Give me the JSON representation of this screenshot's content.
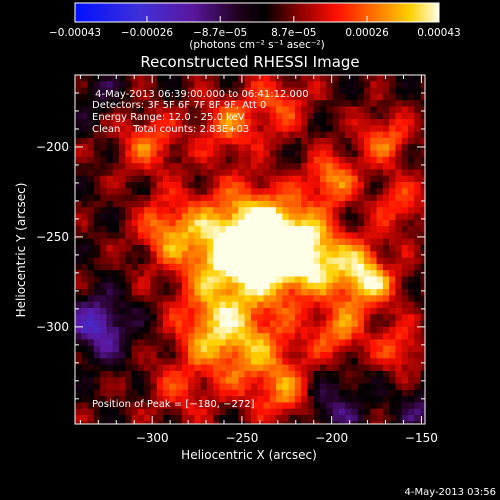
{
  "chart_data": {
    "type": "heatmap",
    "title": "Reconstructed RHESSI Image",
    "xlabel": "Heliocentric X (arcsec)",
    "ylabel": "Heliocentric Y (arcsec)",
    "xlim": [
      -343,
      -148
    ],
    "ylim": [
      -354,
      -160
    ],
    "x_ticks": [
      -300,
      -250,
      -200,
      -150
    ],
    "x_tick_labels": [
      "−300",
      "−250",
      "−200",
      "−150"
    ],
    "y_ticks": [
      -200,
      -250,
      -300
    ],
    "y_tick_labels": [
      "−200",
      "−250",
      "−300"
    ],
    "colorbar": {
      "min": -0.00043,
      "max": 0.00043,
      "ticks": [
        -0.00043,
        -0.00026,
        -8.7e-05,
        8.7e-05,
        0.00026,
        0.00043
      ],
      "tick_labels": [
        "−0.00043",
        "−0.00026",
        "−8.7e−05",
        "8.7e−05",
        "0.00026",
        "0.00043"
      ],
      "unit_label": "(photons cm⁻² s⁻¹ asec⁻²)",
      "colormap": "blue-purple-red-orange-yellow-white"
    },
    "annotations": [
      " 4-May-2013 06:39:00.000 to 06:41:12.000",
      "Detectors: 3F 5F 6F 7F 8F 9F, Att 0",
      "Energy Range: 12.0 - 25.0 keV",
      "Clean    Total counts: 2.83E+03"
    ],
    "peak_label": "Position of Peak = [−180, −272]",
    "peak": [
      -180,
      -272
    ],
    "sources": [
      {
        "x": -252,
        "y": -258,
        "sigma": 22,
        "amp": 0.95
      },
      {
        "x": -232,
        "y": -252,
        "sigma": 16,
        "amp": 0.7
      },
      {
        "x": -210,
        "y": -262,
        "sigma": 14,
        "amp": 0.65
      },
      {
        "x": -180,
        "y": -272,
        "sigma": 12,
        "amp": 0.85
      },
      {
        "x": -200,
        "y": -218,
        "sigma": 10,
        "amp": 0.55
      },
      {
        "x": -266,
        "y": -302,
        "sigma": 14,
        "amp": 0.55
      },
      {
        "x": -240,
        "y": -318,
        "sigma": 18,
        "amp": 0.5
      },
      {
        "x": -292,
        "y": -246,
        "sigma": 12,
        "amp": 0.45
      },
      {
        "x": -302,
        "y": -198,
        "sigma": 12,
        "amp": 0.45
      },
      {
        "x": -258,
        "y": -188,
        "sigma": 12,
        "amp": 0.45
      },
      {
        "x": -230,
        "y": -176,
        "sigma": 12,
        "amp": 0.4
      },
      {
        "x": -170,
        "y": -196,
        "sigma": 11,
        "amp": 0.45
      },
      {
        "x": -162,
        "y": -232,
        "sigma": 10,
        "amp": 0.4
      },
      {
        "x": -196,
        "y": -302,
        "sigma": 10,
        "amp": 0.5
      },
      {
        "x": -162,
        "y": -312,
        "sigma": 10,
        "amp": 0.4
      },
      {
        "x": -285,
        "y": -335,
        "sigma": 12,
        "amp": 0.3
      },
      {
        "x": -224,
        "y": -340,
        "sigma": 10,
        "amp": 0.35
      },
      {
        "x": -330,
        "y": -300,
        "sigma": 12,
        "amp": -0.6
      },
      {
        "x": -200,
        "y": -345,
        "sigma": 12,
        "amp": -0.35
      },
      {
        "x": -150,
        "y": -345,
        "sigma": 10,
        "amp": -0.3
      },
      {
        "x": -330,
        "y": -170,
        "sigma": 10,
        "amp": -0.2
      },
      {
        "x": -170,
        "y": -265,
        "sigma": 6,
        "amp": -0.25
      }
    ],
    "grid": false
  },
  "footer": {
    "timestamp": "4-May-2013 03:56"
  }
}
